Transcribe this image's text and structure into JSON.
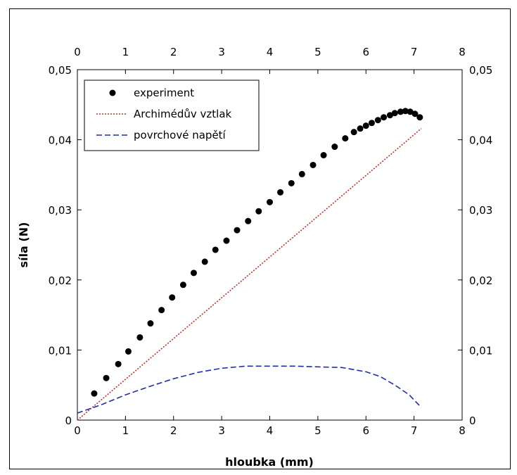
{
  "chart_data": {
    "type": "scatter",
    "xlabel": "hloubka (mm)",
    "ylabel": "síla (N)",
    "xlim": [
      0,
      8
    ],
    "ylim": [
      0,
      0.05
    ],
    "x_ticks": [
      "0",
      "1",
      "2",
      "3",
      "4",
      "5",
      "6",
      "7",
      "8"
    ],
    "y_ticks": [
      "0",
      "0,01",
      "0,02",
      "0,03",
      "0,04",
      "0,05"
    ],
    "legend_position": "top-left",
    "series": [
      {
        "name": "experiment",
        "style": "points",
        "color": "#000000",
        "x": [
          0.35,
          0.6,
          0.85,
          1.06,
          1.3,
          1.52,
          1.75,
          1.97,
          2.2,
          2.42,
          2.65,
          2.87,
          3.1,
          3.32,
          3.55,
          3.77,
          4.0,
          4.22,
          4.45,
          4.67,
          4.9,
          5.12,
          5.35,
          5.57,
          5.75,
          5.88,
          6.0,
          6.12,
          6.25,
          6.37,
          6.5,
          6.6,
          6.72,
          6.82,
          6.92,
          7.02,
          7.12
        ],
        "y": [
          0.0038,
          0.006,
          0.008,
          0.0098,
          0.0118,
          0.0138,
          0.0157,
          0.0175,
          0.0193,
          0.021,
          0.0226,
          0.0243,
          0.0256,
          0.0271,
          0.0284,
          0.0298,
          0.0311,
          0.0325,
          0.0338,
          0.0351,
          0.0364,
          0.0378,
          0.039,
          0.0402,
          0.0411,
          0.0416,
          0.042,
          0.0424,
          0.0428,
          0.0432,
          0.0435,
          0.0438,
          0.044,
          0.0441,
          0.044,
          0.0437,
          0.0432
        ]
      },
      {
        "name": "Archimédův vztlak",
        "style": "dotted-line",
        "color": "#c0302a",
        "x": [
          0,
          7.15
        ],
        "y": [
          0,
          0.0416
        ]
      },
      {
        "name": "povrchové napětí",
        "style": "dashed-line",
        "color": "#1f2fa0",
        "x": [
          0,
          0.5,
          1.0,
          1.5,
          2.0,
          2.5,
          3.0,
          3.5,
          4.0,
          4.5,
          5.0,
          5.5,
          6.0,
          6.3,
          6.6,
          6.9,
          7.15
        ],
        "y": [
          0.001,
          0.0022,
          0.0036,
          0.0048,
          0.0059,
          0.0068,
          0.0074,
          0.0077,
          0.0077,
          0.0077,
          0.0076,
          0.0075,
          0.0069,
          0.0062,
          0.005,
          0.0036,
          0.0018
        ]
      }
    ]
  }
}
